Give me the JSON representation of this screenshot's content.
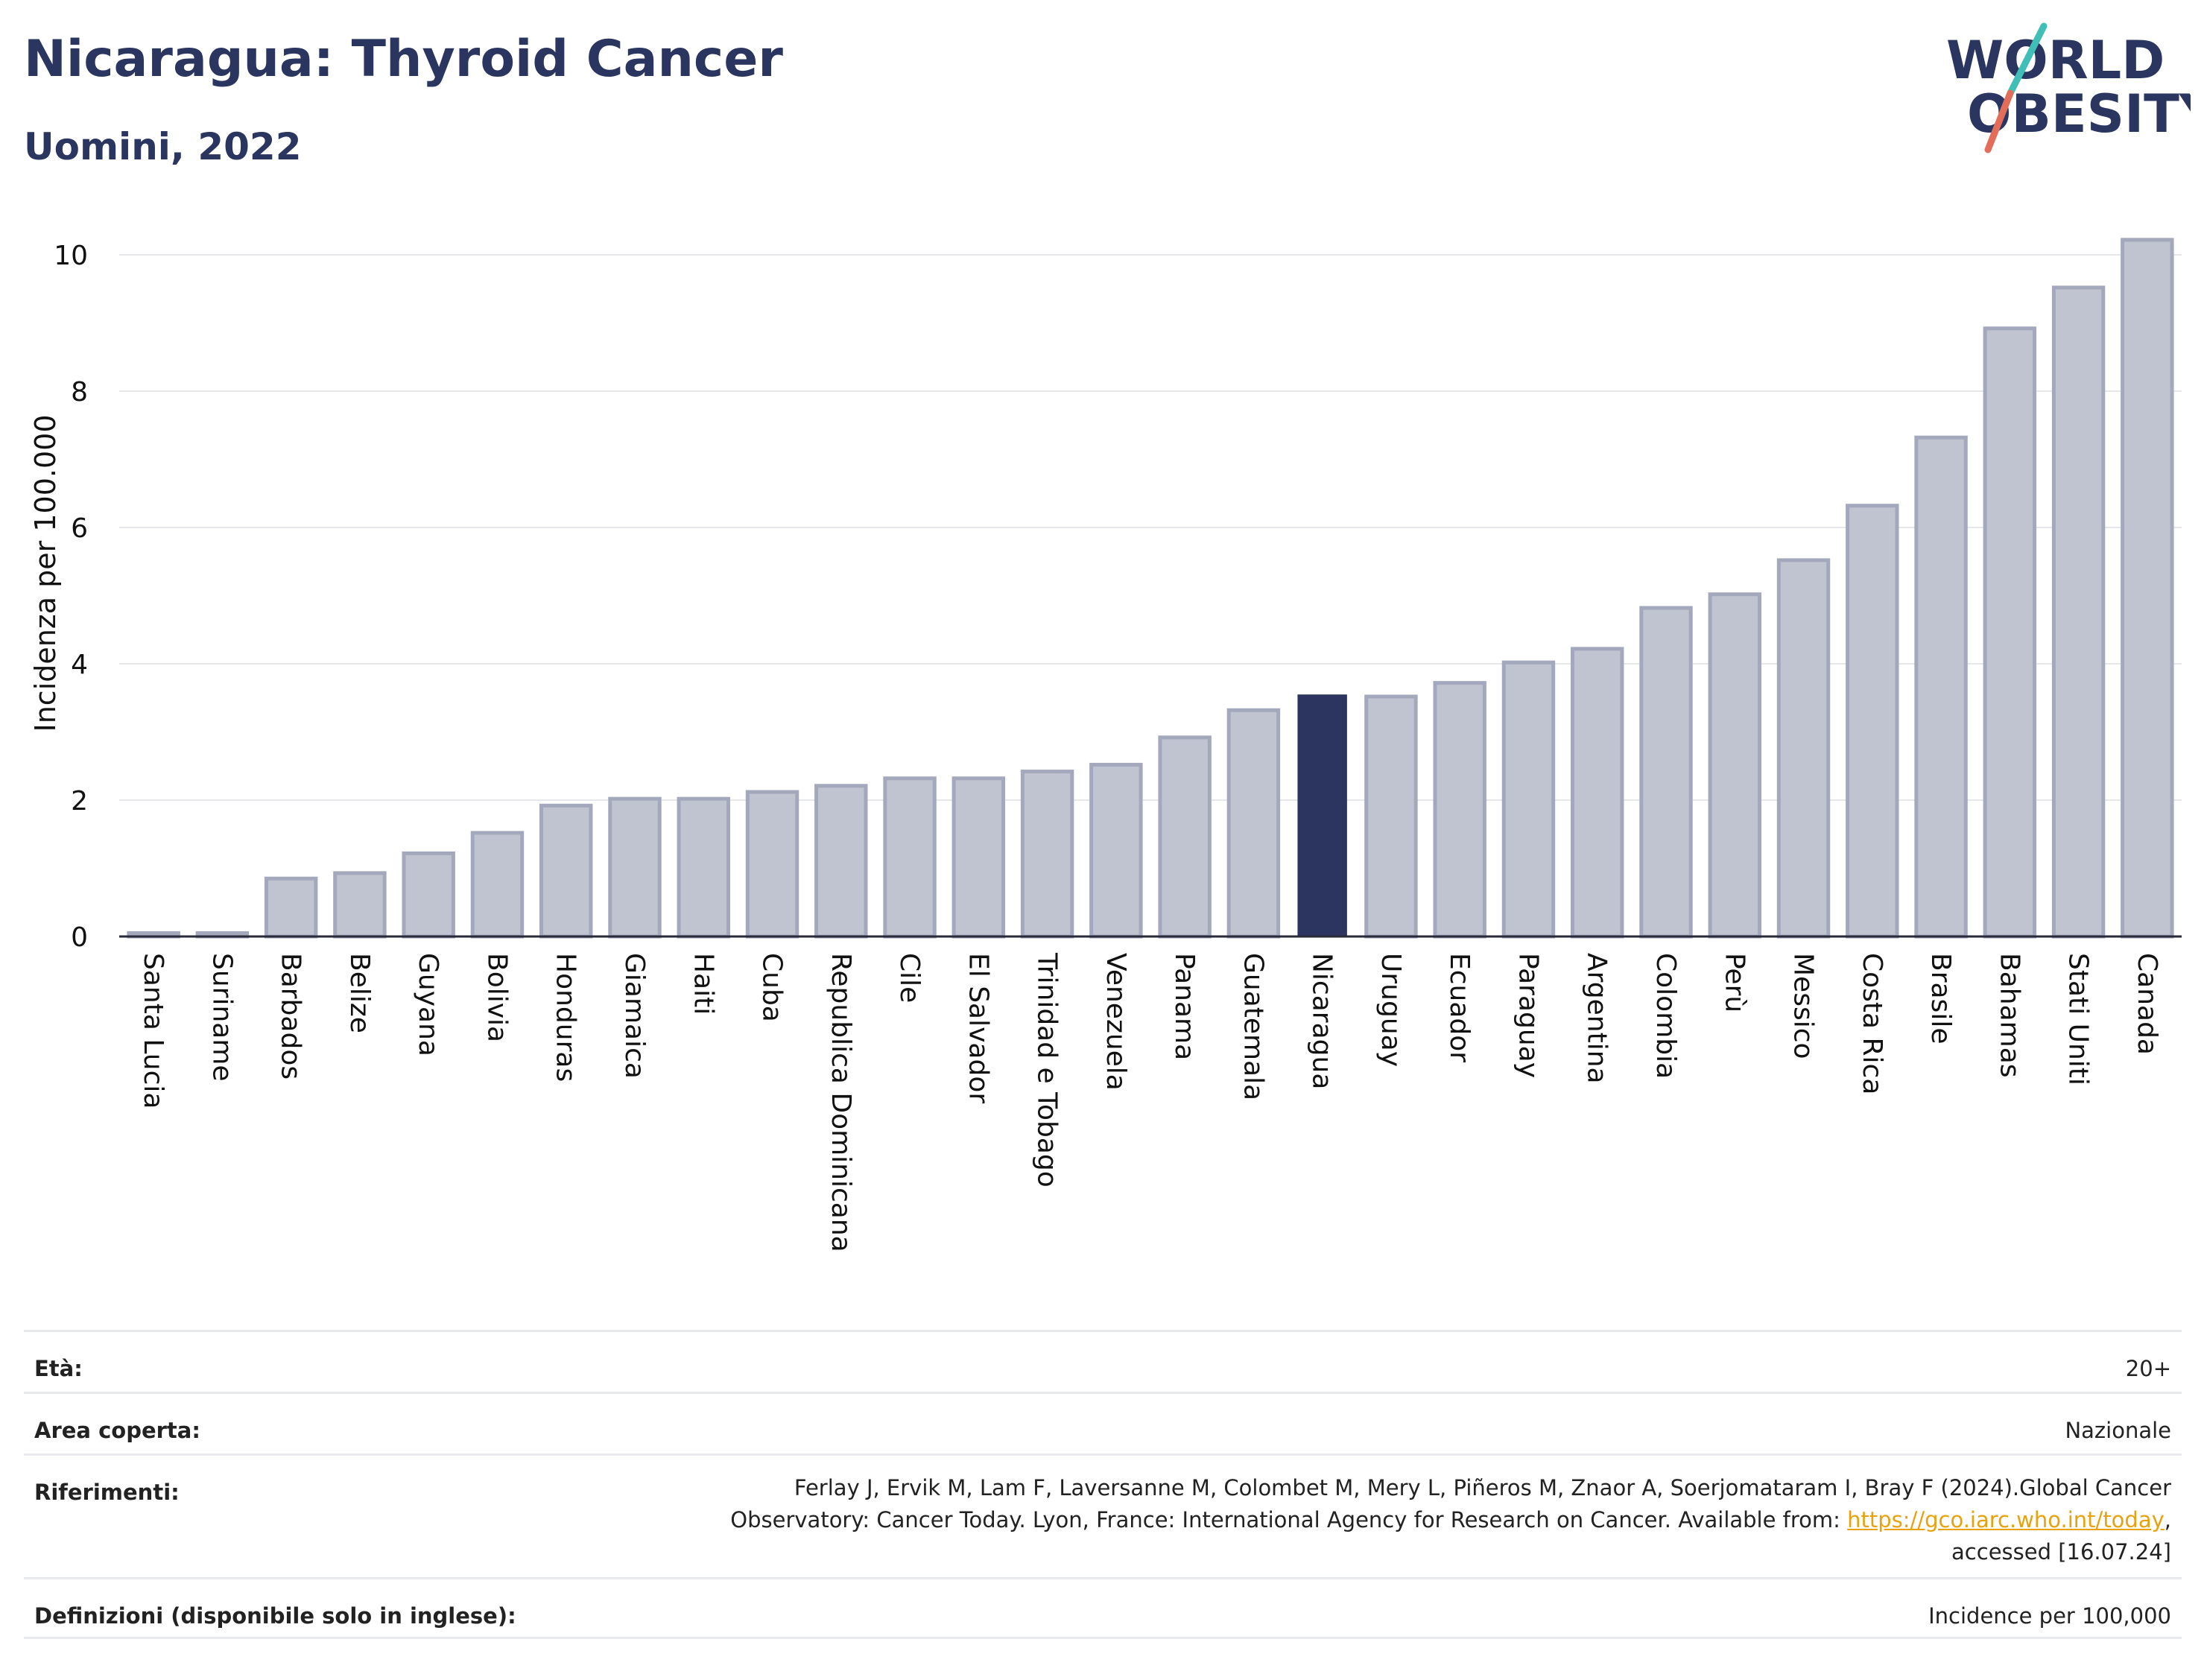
{
  "header": {
    "title": "Nicaragua: Thyroid Cancer",
    "subtitle": "Uomini, 2022",
    "logo_text": [
      "WORLD",
      "OBESITY"
    ]
  },
  "colors": {
    "brand": "#2a3560",
    "bar_fill": "#c0c4d0",
    "bar_stroke": "#a3a8bc",
    "highlight": "#2b3560",
    "link": "#e8a20e",
    "logo_slash_top": "#3fbfb8",
    "logo_slash_bottom": "#e26d5a"
  },
  "chart_data": {
    "type": "bar",
    "ylabel": "Incidenza per 100.000",
    "ylim": [
      0,
      10.3
    ],
    "yticks": [
      0,
      2,
      4,
      6,
      8,
      10
    ],
    "grid": true,
    "highlight": "Nicaragua",
    "categories": [
      "Santa Lucia",
      "Suriname",
      "Barbados",
      "Belize",
      "Guyana",
      "Bolivia",
      "Honduras",
      "Giamaica",
      "Haiti",
      "Cuba",
      "Republica Dominicana",
      "Cile",
      "El Salvador",
      "Trinidad e Tobago",
      "Venezuela",
      "Panama",
      "Guatemala",
      "Nicaragua",
      "Uruguay",
      "Ecuador",
      "Paraguay",
      "Argentina",
      "Colombia",
      "Perù",
      "Messico",
      "Costa Rica",
      "Brasile",
      "Bahamas",
      "Stati Uniti",
      "Canada"
    ],
    "values": [
      0.05,
      0.05,
      0.85,
      0.93,
      1.22,
      1.52,
      1.92,
      2.02,
      2.02,
      2.12,
      2.21,
      2.32,
      2.32,
      2.42,
      2.52,
      2.92,
      3.32,
      3.55,
      3.52,
      3.72,
      4.02,
      4.22,
      4.82,
      5.02,
      5.52,
      6.32,
      7.32,
      8.92,
      9.52,
      10.22
    ]
  },
  "info": {
    "age_label": "Età:",
    "age_value": "20+",
    "area_label": "Area coperta:",
    "area_value": "Nazionale",
    "refs_label": "Riferimenti:",
    "refs_line1": "Ferlay J, Ervik M, Lam F, Laversanne M, Colombet M, Mery L, Piñeros M, Znaor A, Soerjomataram I, Bray F (2024).Global Cancer",
    "refs_line2": "Observatory: Cancer Today. Lyon, France: International Agency for Research on Cancer. Available from:",
    "refs_link": "https://gco.iarc.who.int/today",
    "refs_line3": "accessed [16.07.24]",
    "defs_label": "Definizioni (disponibile solo in inglese):",
    "defs_value": "Incidence per 100,000"
  }
}
